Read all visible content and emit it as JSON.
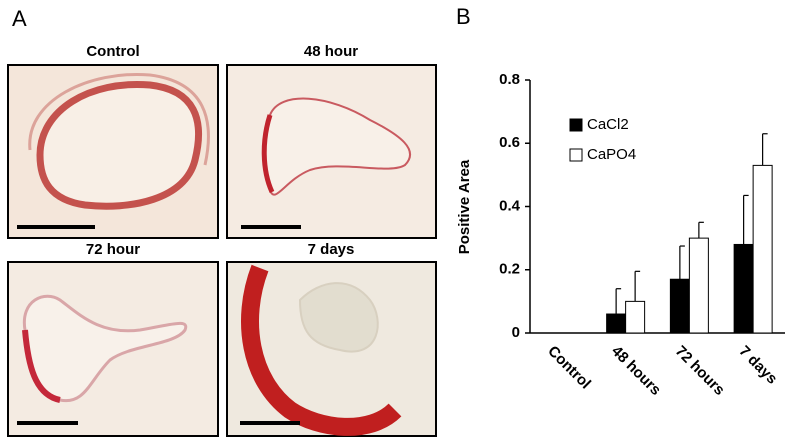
{
  "panel_a": {
    "label": "A",
    "images": [
      "Control",
      "48 hour",
      "72 hour",
      "7 days"
    ]
  },
  "chart_data": {
    "type": "bar",
    "panel_label": "B",
    "y_label": "Positive Area",
    "categories": [
      "Control",
      "48 hours",
      "72 hours",
      "7 days"
    ],
    "series": [
      {
        "name": "CaCl2",
        "color": "#000000",
        "values": [
          0,
          0.06,
          0.17,
          0.28
        ],
        "errors": [
          0,
          0.08,
          0.105,
          0.155
        ]
      },
      {
        "name": "CaPO4",
        "color": "#ffffff",
        "values": [
          0,
          0.1,
          0.3,
          0.53
        ],
        "errors": [
          0,
          0.095,
          0.05,
          0.1
        ]
      }
    ],
    "ylim": [
      0,
      0.8
    ],
    "yticks": [
      0,
      0.2,
      0.4,
      0.6,
      0.8
    ],
    "legend": "upper left",
    "grid": false
  }
}
